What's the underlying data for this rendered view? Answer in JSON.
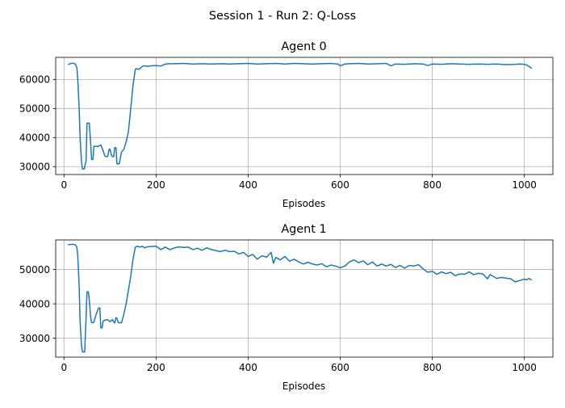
{
  "figure": {
    "suptitle": "Session 1 - Run 2: Q-Loss"
  },
  "chart_data": [
    {
      "type": "line",
      "title": "Agent 0",
      "xlabel": "Episodes",
      "ylabel": "",
      "xlim": [
        -18,
        1062
      ],
      "ylim": [
        27300,
        67600
      ],
      "xticks": [
        0,
        200,
        400,
        600,
        800,
        1000
      ],
      "yticks": [
        30000,
        40000,
        50000,
        60000
      ],
      "xtick_labels": [
        "0",
        "200",
        "400",
        "600",
        "800",
        "1000"
      ],
      "ytick_labels": [
        "30000",
        "40000",
        "50000",
        "60000"
      ],
      "grid": true,
      "series": [
        {
          "color": "#1f77b4",
          "x": [
            10,
            15,
            20,
            25,
            28,
            30,
            33,
            35,
            38,
            40,
            44,
            48,
            50,
            53,
            55,
            58,
            60,
            63,
            65,
            70,
            75,
            80,
            85,
            88,
            90,
            95,
            98,
            100,
            103,
            105,
            108,
            110,
            113,
            115,
            118,
            120,
            125,
            130,
            135,
            140,
            145,
            150,
            155,
            158,
            160,
            165,
            170,
            175,
            180,
            190,
            200,
            210,
            220,
            230,
            240,
            260,
            280,
            300,
            320,
            340,
            360,
            380,
            400,
            420,
            440,
            460,
            480,
            500,
            520,
            540,
            560,
            580,
            595,
            600,
            610,
            620,
            640,
            660,
            680,
            700,
            710,
            720,
            740,
            760,
            780,
            790,
            800,
            820,
            840,
            860,
            880,
            900,
            920,
            940,
            960,
            980,
            990,
            1000,
            1005,
            1010,
            1015
          ],
          "y": [
            65200,
            65500,
            65600,
            65300,
            64000,
            60000,
            50000,
            40000,
            32000,
            29200,
            29200,
            32000,
            45000,
            45000,
            45000,
            38000,
            32500,
            32500,
            37000,
            37000,
            37000,
            37500,
            35500,
            34000,
            33500,
            33500,
            36000,
            36000,
            34000,
            33500,
            33500,
            36500,
            36500,
            31000,
            31000,
            31000,
            35000,
            36000,
            38500,
            42000,
            50000,
            58000,
            63500,
            63700,
            63500,
            63700,
            64500,
            64700,
            64500,
            64700,
            64800,
            64600,
            65300,
            65400,
            65400,
            65500,
            65300,
            65400,
            65300,
            65400,
            65300,
            65400,
            65500,
            65300,
            65400,
            65500,
            65300,
            65500,
            65400,
            65300,
            65400,
            65500,
            65300,
            64700,
            65300,
            65400,
            65500,
            65300,
            65400,
            65500,
            64700,
            65300,
            65200,
            65400,
            65300,
            64800,
            65300,
            65200,
            65400,
            65300,
            65200,
            65300,
            65200,
            65300,
            65100,
            65200,
            65300,
            65200,
            65000,
            64500,
            63900
          ]
        }
      ]
    },
    {
      "type": "line",
      "title": "Agent 1",
      "xlabel": "Episodes",
      "ylabel": "",
      "xlim": [
        -18,
        1062
      ],
      "ylim": [
        24500,
        58600
      ],
      "xticks": [
        0,
        200,
        400,
        600,
        800,
        1000
      ],
      "yticks": [
        30000,
        40000,
        50000
      ],
      "xtick_labels": [
        "0",
        "200",
        "400",
        "600",
        "800",
        "1000"
      ],
      "ytick_labels": [
        "30000",
        "40000",
        "50000"
      ],
      "grid": true,
      "series": [
        {
          "color": "#1f77b4",
          "x": [
            10,
            15,
            20,
            25,
            28,
            30,
            33,
            35,
            38,
            40,
            45,
            48,
            50,
            53,
            55,
            58,
            60,
            63,
            65,
            70,
            75,
            78,
            80,
            83,
            85,
            90,
            95,
            100,
            105,
            110,
            113,
            115,
            118,
            120,
            125,
            130,
            135,
            140,
            145,
            150,
            155,
            160,
            165,
            170,
            175,
            180,
            190,
            200,
            210,
            220,
            230,
            240,
            250,
            260,
            270,
            280,
            290,
            300,
            310,
            320,
            340,
            350,
            360,
            370,
            380,
            390,
            400,
            410,
            420,
            430,
            440,
            450,
            455,
            460,
            470,
            480,
            490,
            500,
            510,
            520,
            530,
            540,
            550,
            560,
            570,
            580,
            590,
            600,
            610,
            620,
            630,
            640,
            650,
            660,
            670,
            680,
            690,
            700,
            710,
            720,
            730,
            740,
            750,
            760,
            770,
            780,
            790,
            800,
            810,
            820,
            830,
            840,
            850,
            860,
            870,
            880,
            890,
            900,
            910,
            920,
            925,
            930,
            940,
            950,
            960,
            970,
            980,
            990,
            1000,
            1005,
            1010,
            1015
          ],
          "y": [
            57200,
            57300,
            57300,
            57200,
            56500,
            54000,
            45000,
            35000,
            28000,
            26000,
            26000,
            36000,
            43500,
            43500,
            41000,
            36000,
            34500,
            34500,
            34700,
            37000,
            38800,
            38800,
            33000,
            33000,
            35000,
            35300,
            35400,
            34800,
            35400,
            34400,
            36000,
            35800,
            34500,
            34500,
            34500,
            37000,
            40000,
            44000,
            48000,
            53000,
            56500,
            56800,
            56500,
            56800,
            56300,
            56600,
            56700,
            56800,
            55800,
            56500,
            55800,
            56300,
            56600,
            56400,
            56500,
            55800,
            56200,
            55600,
            56300,
            55800,
            55200,
            55600,
            55200,
            55300,
            54500,
            55000,
            53800,
            54400,
            53000,
            54000,
            53600,
            55000,
            51800,
            53500,
            52800,
            53800,
            52400,
            53000,
            52200,
            51600,
            52100,
            51600,
            51300,
            51700,
            50800,
            51300,
            51000,
            50500,
            51000,
            52200,
            52800,
            52000,
            52500,
            51400,
            52200,
            51000,
            51600,
            51000,
            51500,
            50600,
            51200,
            50400,
            51200,
            51000,
            51400,
            50200,
            49200,
            49500,
            48600,
            49300,
            48800,
            49200,
            48200,
            48700,
            48600,
            49300,
            48500,
            48900,
            48700,
            47300,
            48500,
            48200,
            47400,
            47700,
            47500,
            47300,
            46400,
            46800,
            47200,
            47000,
            47400,
            47000
          ]
        }
      ]
    }
  ]
}
